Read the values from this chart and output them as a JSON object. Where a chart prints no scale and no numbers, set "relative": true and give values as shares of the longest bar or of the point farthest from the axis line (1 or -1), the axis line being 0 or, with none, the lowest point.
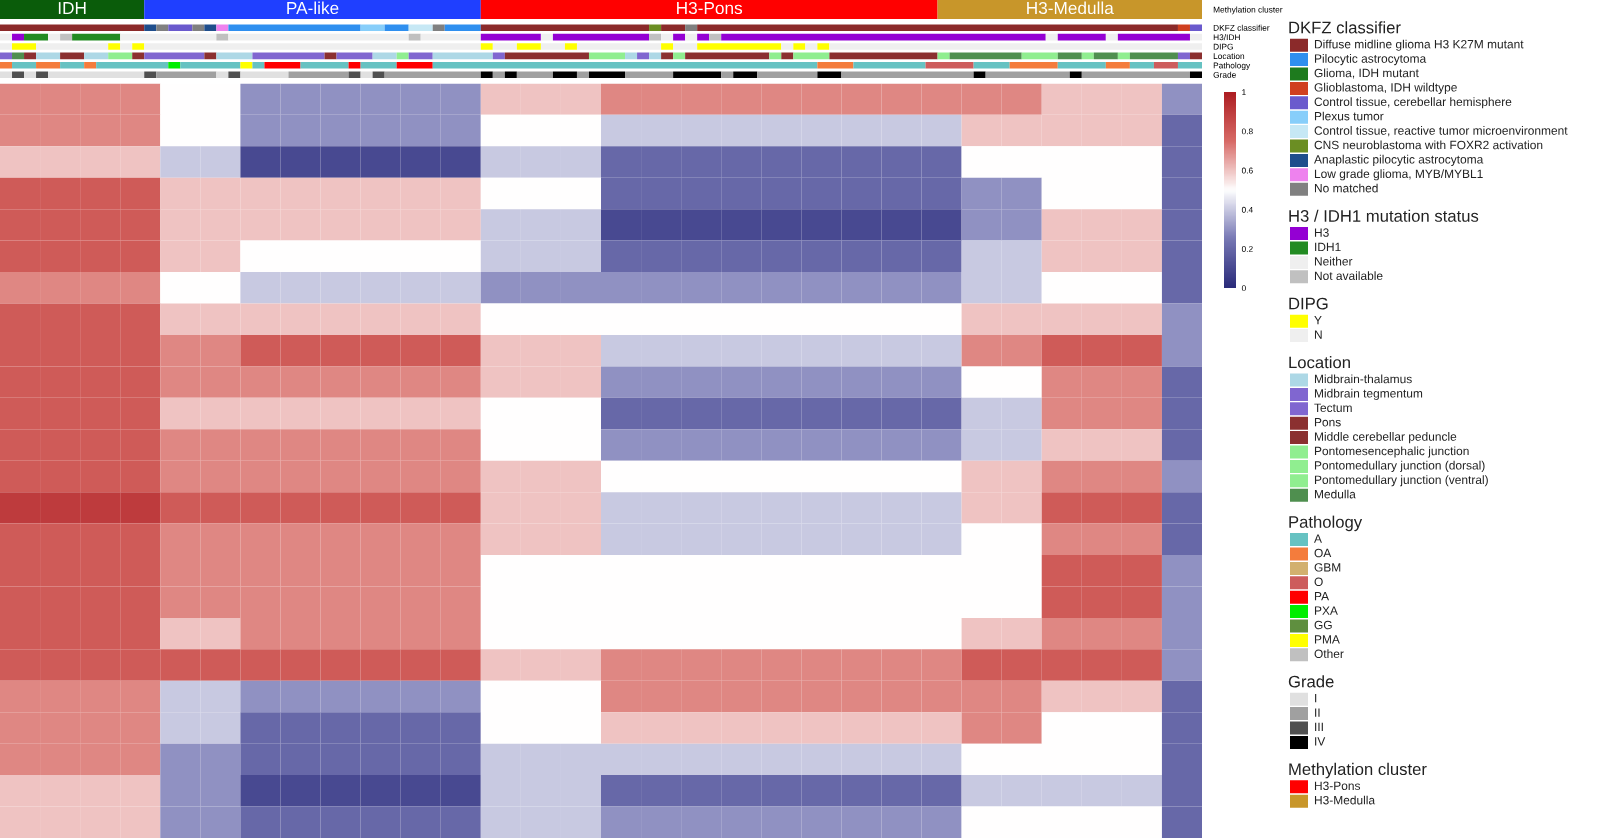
{
  "chart_data": [
    {
      "type": "bar",
      "orientation": "horizontal",
      "stacked": true,
      "relative": true,
      "categories": [
        "Methylation cluster"
      ],
      "series": [
        {
          "color": "#0a5c0a",
          "values": [
            0.12
          ]
        },
        {
          "color": "#1f3fff",
          "values": [
            0.28
          ]
        },
        {
          "color": "#ff0000",
          "values": [
            0.38
          ]
        },
        {
          "color": "#c8962a",
          "values": [
            0.22
          ]
        }
      ],
      "annotations": [
        {
          "text": "IDH",
          "x": 0.06
        },
        {
          "text": "PA-like",
          "x": 0.26
        },
        {
          "text": "H3-Pons",
          "x": 0.59
        },
        {
          "text": "H3-Medulla",
          "x": 0.89
        }
      ]
    },
    {
      "type": "bar",
      "orientation": "horizontal",
      "stacked": true,
      "relative": true,
      "categories": [
        "DKFZ classifier",
        "H3/IDH",
        "DIPG",
        "Location",
        "Pathology",
        "Grade"
      ],
      "series": [
        {
          "values": [
            0.12,
            0.01,
            0.01,
            0.01,
            0.01,
            0.01
          ],
          "colors": [
            "#8b2a2a",
            "#efefef",
            "#efefef",
            "#8066d0",
            "#f47c3c",
            "#e0e0e0"
          ]
        },
        {
          "values": [
            0.01,
            0.01,
            0.02,
            0.01,
            0.02,
            0.01
          ],
          "colors": [
            "#1f4e8c",
            "#9400d3",
            "#ffff00",
            "#4f8f4f",
            "#66c2c2",
            "#505050"
          ]
        },
        {
          "values": [
            0.01,
            0.02,
            0.06,
            0.01,
            0.02,
            0.01
          ],
          "colors": [
            "#808080",
            "#228b22",
            "#efefef",
            "#8b3030",
            "#f47c3c",
            "#e0e0e0"
          ]
        },
        {
          "values": [
            0.02,
            0.01,
            0.01,
            0.02,
            0.02,
            0.01
          ],
          "colors": [
            "#6a5acd",
            "#efefef",
            "#ffff00",
            "#add8e6",
            "#66c2c2",
            "#505050"
          ]
        },
        {
          "values": [
            0.01,
            0.01,
            0.01,
            0.02,
            0.01,
            0.08
          ],
          "colors": [
            "#808080",
            "#c0c0c0",
            "#efefef",
            "#8b3030",
            "#f47c3c",
            "#e0e0e0"
          ]
        },
        {
          "values": [
            0.01,
            0.04,
            0.01,
            0.02,
            0.06,
            0.01
          ],
          "colors": [
            "#1f4e8c",
            "#228b22",
            "#ffff00",
            "#add8e6",
            "#66c2c2",
            "#505050"
          ]
        },
        {
          "values": [
            0.01,
            0.08,
            0.28,
            0.02,
            0.01,
            0.05
          ],
          "colors": [
            "#ee82ee",
            "#efefef",
            "#efefef",
            "#90ee90",
            "#00ee00",
            "#a0a0a0"
          ]
        },
        {
          "values": [
            0.11,
            0.01,
            0.01,
            0.01,
            0.05,
            0.01
          ],
          "colors": [
            "#2f8fef",
            "#c0c0c0",
            "#ffff00",
            "#8b3030",
            "#66c2c2",
            "#e0e0e0"
          ]
        },
        {
          "values": [
            0.02,
            0.15,
            0.02,
            0.05,
            0.01,
            0.01
          ],
          "colors": [
            "#87cefa",
            "#efefef",
            "#efefef",
            "#8066d0",
            "#ffff00",
            "#505050"
          ]
        },
        {
          "values": [
            0.02,
            0.01,
            0.02,
            0.01,
            0.01,
            0.04
          ],
          "colors": [
            "#2f8fef",
            "#c0c0c0",
            "#ffff00",
            "#8b3030",
            "#66c2c2",
            "#e0e0e0"
          ]
        },
        {
          "values": [
            0.02,
            0.05,
            0.02,
            0.03,
            0.03,
            0.05
          ],
          "colors": [
            "#c6e8f5",
            "#efefef",
            "#efefef",
            "#add8e6",
            "#ff0000",
            "#a0a0a0"
          ]
        },
        {
          "values": [
            0.01,
            0.05,
            0.01,
            0.06,
            0.04,
            0.01
          ],
          "colors": [
            "#808080",
            "#9400d3",
            "#ffff00",
            "#8066d0",
            "#66c2c2",
            "#505050"
          ]
        },
        {
          "values": [
            0.03,
            0.01,
            0.07,
            0.01,
            0.01,
            0.01
          ],
          "colors": [
            "#2f8fef",
            "#efefef",
            "#efefef",
            "#8b3030",
            "#ff0000",
            "#e0e0e0"
          ]
        },
        {
          "values": [
            0.14,
            0.08,
            0.01,
            0.03,
            0.03,
            0.01
          ],
          "colors": [
            "#8b2a2a",
            "#9400d3",
            "#ffff00",
            "#8066d0",
            "#66c2c2",
            "#505050"
          ]
        },
        {
          "values": [
            0.01,
            0.01,
            0.02,
            0.02,
            0.03,
            0.08
          ],
          "colors": [
            "#6b8e23",
            "#c0c0c0",
            "#efefef",
            "#add8e6",
            "#ff0000",
            "#a0a0a0"
          ]
        },
        {
          "values": [
            0.02,
            0.01,
            0.07,
            0.01,
            0.32,
            0.01
          ],
          "colors": [
            "#8b2a2a",
            "#efefef",
            "#ffff00",
            "#90ee90",
            "#66c2c2",
            "#000000"
          ]
        },
        {
          "values": [
            0.01,
            0.01,
            0.01,
            0.02,
            0.03,
            0.01
          ],
          "colors": [
            "#808080",
            "#9400d3",
            "#efefef",
            "#8066d0",
            "#f47c3c",
            "#a0a0a0"
          ]
        },
        {
          "values": [
            0.4,
            0.01,
            0.01,
            0.05,
            0.06,
            0.01
          ],
          "colors": [
            "#8b2a2a",
            "#efefef",
            "#ffff00",
            "#add8e6",
            "#66c2c2",
            "#000000"
          ]
        },
        {
          "values": [
            0.01,
            0.01,
            0.01,
            0.01,
            0.04,
            0.03
          ],
          "colors": [
            "#d04020",
            "#9400d3",
            "#efefef",
            "#8066d0",
            "#cd5c5c",
            "#a0a0a0"
          ]
        },
        {
          "values": [
            0.01,
            0.01,
            0.01,
            0.07,
            0.03,
            0.02
          ],
          "colors": [
            "#6a5acd",
            "#c0c0c0",
            "#ffff00",
            "#8b3030",
            "#66c2c2",
            "#000000"
          ]
        },
        {
          "values": [
            null,
            0.27,
            0.31,
            0.03,
            0.04,
            0.01
          ],
          "colors": [
            null,
            "#9400d3",
            "#efefef",
            "#90ee90",
            "#f47c3c",
            "#a0a0a0"
          ]
        },
        {
          "values": [
            null,
            0.01,
            null,
            0.01,
            0.04,
            0.03
          ],
          "colors": [
            null,
            "#efefef",
            null,
            "#add8e6",
            "#66c2c2",
            "#000000"
          ]
        },
        {
          "values": [
            null,
            0.04,
            null,
            0.01,
            0.02,
            0.04
          ],
          "colors": [
            null,
            "#9400d3",
            null,
            "#8066d0",
            "#f47c3c",
            "#a0a0a0"
          ]
        },
        {
          "values": [
            null,
            0.01,
            null,
            0.01,
            0.02,
            0.04
          ],
          "colors": [
            null,
            "#efefef",
            null,
            "#add8e6",
            "#66c2c2",
            "#000000"
          ]
        },
        {
          "values": [
            null,
            0.06,
            null,
            0.01,
            0.02,
            0.01
          ],
          "colors": [
            null,
            "#9400d3",
            null,
            "#8b3030",
            "#cd5c5c",
            "#a0a0a0"
          ]
        },
        {
          "values": [
            null,
            0.01,
            null,
            0.01,
            0.02,
            0.02
          ],
          "colors": [
            null,
            "#efefef",
            null,
            "#90ee90",
            "#66c2c2",
            "#000000"
          ]
        },
        {
          "values": [
            null,
            null,
            null,
            0.07,
            null,
            0.05
          ],
          "colors": [
            null,
            null,
            null,
            "#8b3030",
            null,
            "#a0a0a0"
          ]
        },
        {
          "values": [
            null,
            null,
            null,
            0.01,
            null,
            0.02
          ],
          "colors": [
            null,
            null,
            null,
            "#90ee90",
            null,
            "#000000"
          ]
        },
        {
          "values": [
            null,
            null,
            null,
            0.01,
            null,
            0.11
          ],
          "colors": [
            null,
            null,
            null,
            "#8b3030",
            null,
            "#a0a0a0"
          ]
        },
        {
          "values": [
            null,
            null,
            null,
            0.03,
            null,
            0.01
          ],
          "colors": [
            null,
            null,
            null,
            "#90ee90",
            null,
            "#000000"
          ]
        },
        {
          "values": [
            null,
            null,
            null,
            0.09,
            null,
            0.07
          ],
          "colors": [
            null,
            null,
            null,
            "#8b3030",
            null,
            "#a0a0a0"
          ]
        },
        {
          "values": [
            null,
            null,
            null,
            0.01,
            null,
            0.01
          ],
          "colors": [
            null,
            null,
            null,
            "#90ee90",
            null,
            "#000000"
          ]
        },
        {
          "values": [
            null,
            null,
            null,
            0.06,
            null,
            0.09
          ],
          "colors": [
            null,
            null,
            null,
            "#4f8f4f",
            null,
            "#a0a0a0"
          ]
        },
        {
          "values": [
            null,
            null,
            null,
            0.03,
            null,
            0.01
          ],
          "colors": [
            null,
            null,
            null,
            "#90ee90",
            null,
            "#000000"
          ]
        },
        {
          "values": [
            null,
            null,
            null,
            0.02,
            null,
            null
          ],
          "colors": [
            null,
            null,
            null,
            "#4f8f4f",
            null,
            null
          ]
        },
        {
          "values": [
            null,
            null,
            null,
            0.01,
            null,
            null
          ],
          "colors": [
            null,
            null,
            null,
            "#90ee90",
            null,
            null
          ]
        },
        {
          "values": [
            null,
            null,
            null,
            0.02,
            null,
            null
          ],
          "colors": [
            null,
            null,
            null,
            "#4f8f4f",
            null,
            null
          ]
        },
        {
          "values": [
            null,
            null,
            null,
            0.01,
            null,
            null
          ],
          "colors": [
            null,
            null,
            null,
            "#90ee90",
            null,
            null
          ]
        },
        {
          "values": [
            null,
            null,
            null,
            0.04,
            null,
            null
          ],
          "colors": [
            null,
            null,
            null,
            "#4f8f4f",
            null,
            null
          ]
        },
        {
          "values": [
            null,
            null,
            null,
            0.01,
            null,
            null
          ],
          "colors": [
            null,
            null,
            null,
            "#8066d0",
            null,
            null
          ]
        },
        {
          "values": [
            null,
            null,
            null,
            0.01,
            null,
            null
          ],
          "colors": [
            null,
            null,
            null,
            "#8b3030",
            null,
            null
          ]
        }
      ]
    },
    {
      "type": "heatmap",
      "clim": [
        0,
        1
      ],
      "cticks": [
        0,
        0.2,
        0.4,
        0.6,
        0.8,
        1
      ],
      "categories": [
        null,
        null,
        null,
        null,
        null,
        null,
        null,
        null,
        null,
        null,
        null,
        null,
        null,
        null,
        null,
        null,
        null,
        null,
        null,
        null,
        null,
        null,
        null,
        null,
        null,
        null,
        null,
        null,
        null,
        null
      ],
      "y_categories": [
        null,
        null,
        null,
        null,
        null,
        null,
        null,
        null,
        null,
        null,
        null,
        null,
        null,
        null,
        null,
        null,
        null,
        null,
        null,
        null,
        null,
        null,
        null,
        null
      ],
      "cells": [
        [
          0.7,
          0.7,
          0.7,
          0.7,
          0.5,
          0.5,
          0.3,
          0.3,
          0.3,
          0.3,
          0.3,
          0.3,
          0.6,
          0.6,
          0.6,
          0.7,
          0.7,
          0.7,
          0.7,
          0.7,
          0.7,
          0.7,
          0.7,
          0.7,
          0.7,
          0.7,
          0.6,
          0.6,
          0.6,
          0.3
        ],
        [
          0.7,
          0.7,
          0.7,
          0.7,
          0.5,
          0.5,
          0.3,
          0.3,
          0.3,
          0.3,
          0.3,
          0.3,
          0.5,
          0.5,
          0.5,
          0.4,
          0.4,
          0.4,
          0.4,
          0.4,
          0.4,
          0.4,
          0.4,
          0.4,
          0.6,
          0.6,
          0.6,
          0.6,
          0.6,
          0.2
        ],
        [
          0.6,
          0.6,
          0.6,
          0.6,
          0.4,
          0.4,
          0.1,
          0.1,
          0.1,
          0.1,
          0.1,
          0.1,
          0.4,
          0.4,
          0.4,
          0.2,
          0.2,
          0.2,
          0.2,
          0.2,
          0.2,
          0.2,
          0.2,
          0.2,
          0.5,
          0.5,
          0.5,
          0.5,
          0.5,
          0.2
        ],
        [
          0.8,
          0.8,
          0.8,
          0.8,
          0.6,
          0.6,
          0.6,
          0.6,
          0.6,
          0.6,
          0.6,
          0.6,
          0.5,
          0.5,
          0.5,
          0.2,
          0.2,
          0.2,
          0.2,
          0.2,
          0.2,
          0.2,
          0.2,
          0.2,
          0.3,
          0.3,
          0.5,
          0.5,
          0.5,
          0.2
        ],
        [
          0.8,
          0.8,
          0.8,
          0.8,
          0.6,
          0.6,
          0.6,
          0.6,
          0.6,
          0.6,
          0.6,
          0.6,
          0.4,
          0.4,
          0.4,
          0.1,
          0.1,
          0.1,
          0.1,
          0.1,
          0.1,
          0.1,
          0.1,
          0.1,
          0.3,
          0.3,
          0.6,
          0.6,
          0.6,
          0.2
        ],
        [
          0.8,
          0.8,
          0.8,
          0.8,
          0.6,
          0.6,
          0.5,
          0.5,
          0.5,
          0.5,
          0.5,
          0.5,
          0.4,
          0.4,
          0.4,
          0.2,
          0.2,
          0.2,
          0.2,
          0.2,
          0.2,
          0.2,
          0.2,
          0.2,
          0.4,
          0.4,
          0.6,
          0.6,
          0.6,
          0.2
        ],
        [
          0.7,
          0.7,
          0.7,
          0.7,
          0.5,
          0.5,
          0.4,
          0.4,
          0.4,
          0.4,
          0.4,
          0.4,
          0.3,
          0.3,
          0.3,
          0.3,
          0.3,
          0.3,
          0.3,
          0.3,
          0.3,
          0.3,
          0.3,
          0.3,
          0.4,
          0.4,
          0.5,
          0.5,
          0.5,
          0.2
        ],
        [
          0.8,
          0.8,
          0.8,
          0.8,
          0.6,
          0.6,
          0.6,
          0.6,
          0.6,
          0.6,
          0.6,
          0.6,
          0.5,
          0.5,
          0.5,
          0.5,
          0.5,
          0.5,
          0.5,
          0.5,
          0.5,
          0.5,
          0.5,
          0.5,
          0.6,
          0.6,
          0.6,
          0.6,
          0.6,
          0.3
        ],
        [
          0.8,
          0.8,
          0.8,
          0.8,
          0.7,
          0.7,
          0.8,
          0.8,
          0.8,
          0.8,
          0.8,
          0.8,
          0.6,
          0.6,
          0.6,
          0.4,
          0.4,
          0.4,
          0.4,
          0.4,
          0.4,
          0.4,
          0.4,
          0.4,
          0.7,
          0.7,
          0.8,
          0.8,
          0.8,
          0.3
        ],
        [
          0.8,
          0.8,
          0.8,
          0.8,
          0.7,
          0.7,
          0.7,
          0.7,
          0.7,
          0.7,
          0.7,
          0.7,
          0.6,
          0.6,
          0.6,
          0.3,
          0.3,
          0.3,
          0.3,
          0.3,
          0.3,
          0.3,
          0.3,
          0.3,
          0.5,
          0.5,
          0.7,
          0.7,
          0.7,
          0.2
        ],
        [
          0.8,
          0.8,
          0.8,
          0.8,
          0.6,
          0.6,
          0.6,
          0.6,
          0.6,
          0.6,
          0.6,
          0.6,
          0.5,
          0.5,
          0.5,
          0.2,
          0.2,
          0.2,
          0.2,
          0.2,
          0.2,
          0.2,
          0.2,
          0.2,
          0.4,
          0.4,
          0.7,
          0.7,
          0.7,
          0.2
        ],
        [
          0.8,
          0.8,
          0.8,
          0.8,
          0.7,
          0.7,
          0.7,
          0.7,
          0.7,
          0.7,
          0.7,
          0.7,
          0.5,
          0.5,
          0.5,
          0.3,
          0.3,
          0.3,
          0.3,
          0.3,
          0.3,
          0.3,
          0.3,
          0.3,
          0.4,
          0.4,
          0.6,
          0.6,
          0.6,
          0.2
        ],
        [
          0.8,
          0.8,
          0.8,
          0.8,
          0.7,
          0.7,
          0.7,
          0.7,
          0.7,
          0.7,
          0.7,
          0.7,
          0.6,
          0.6,
          0.6,
          0.5,
          0.5,
          0.5,
          0.5,
          0.5,
          0.5,
          0.5,
          0.5,
          0.5,
          0.6,
          0.6,
          0.7,
          0.7,
          0.7,
          0.3
        ],
        [
          0.9,
          0.9,
          0.9,
          0.9,
          0.8,
          0.8,
          0.8,
          0.8,
          0.8,
          0.8,
          0.8,
          0.8,
          0.6,
          0.6,
          0.6,
          0.4,
          0.4,
          0.4,
          0.4,
          0.4,
          0.4,
          0.4,
          0.4,
          0.4,
          0.6,
          0.6,
          0.8,
          0.8,
          0.8,
          0.2
        ],
        [
          0.8,
          0.8,
          0.8,
          0.8,
          0.7,
          0.7,
          0.7,
          0.7,
          0.7,
          0.7,
          0.7,
          0.7,
          0.6,
          0.6,
          0.6,
          0.4,
          0.4,
          0.4,
          0.4,
          0.4,
          0.4,
          0.4,
          0.4,
          0.4,
          0.5,
          0.5,
          0.7,
          0.7,
          0.7,
          0.2
        ],
        [
          0.8,
          0.8,
          0.8,
          0.8,
          0.7,
          0.7,
          0.7,
          0.7,
          0.7,
          0.7,
          0.7,
          0.7,
          0.5,
          0.5,
          0.5,
          0.5,
          0.5,
          0.5,
          0.5,
          0.5,
          0.5,
          0.5,
          0.5,
          0.5,
          0.5,
          0.5,
          0.8,
          0.8,
          0.8,
          0.3
        ],
        [
          0.8,
          0.8,
          0.8,
          0.8,
          0.7,
          0.7,
          0.7,
          0.7,
          0.7,
          0.7,
          0.7,
          0.7,
          0.5,
          0.5,
          0.5,
          0.5,
          0.5,
          0.5,
          0.5,
          0.5,
          0.5,
          0.5,
          0.5,
          0.5,
          0.5,
          0.5,
          0.8,
          0.8,
          0.8,
          0.3
        ],
        [
          0.8,
          0.8,
          0.8,
          0.8,
          0.6,
          0.6,
          0.7,
          0.7,
          0.7,
          0.7,
          0.7,
          0.7,
          0.5,
          0.5,
          0.5,
          0.5,
          0.5,
          0.5,
          0.5,
          0.5,
          0.5,
          0.5,
          0.5,
          0.5,
          0.6,
          0.6,
          0.7,
          0.7,
          0.7,
          0.3
        ],
        [
          0.8,
          0.8,
          0.8,
          0.8,
          0.8,
          0.8,
          0.8,
          0.8,
          0.8,
          0.8,
          0.8,
          0.8,
          0.6,
          0.6,
          0.6,
          0.7,
          0.7,
          0.7,
          0.7,
          0.7,
          0.7,
          0.7,
          0.7,
          0.7,
          0.8,
          0.8,
          0.8,
          0.8,
          0.8,
          0.3
        ],
        [
          0.7,
          0.7,
          0.7,
          0.7,
          0.4,
          0.4,
          0.3,
          0.3,
          0.3,
          0.3,
          0.3,
          0.3,
          0.5,
          0.5,
          0.5,
          0.7,
          0.7,
          0.7,
          0.7,
          0.7,
          0.7,
          0.7,
          0.7,
          0.7,
          0.7,
          0.7,
          0.6,
          0.6,
          0.6,
          0.2
        ],
        [
          0.7,
          0.7,
          0.7,
          0.7,
          0.4,
          0.4,
          0.2,
          0.2,
          0.2,
          0.2,
          0.2,
          0.2,
          0.5,
          0.5,
          0.5,
          0.6,
          0.6,
          0.6,
          0.6,
          0.6,
          0.6,
          0.6,
          0.6,
          0.6,
          0.7,
          0.7,
          0.5,
          0.5,
          0.5,
          0.2
        ],
        [
          0.7,
          0.7,
          0.7,
          0.7,
          0.3,
          0.3,
          0.2,
          0.2,
          0.2,
          0.2,
          0.2,
          0.2,
          0.4,
          0.4,
          0.4,
          0.4,
          0.4,
          0.4,
          0.4,
          0.4,
          0.4,
          0.4,
          0.4,
          0.4,
          0.5,
          0.5,
          0.5,
          0.5,
          0.5,
          0.2
        ],
        [
          0.6,
          0.6,
          0.6,
          0.6,
          0.3,
          0.3,
          0.1,
          0.1,
          0.1,
          0.1,
          0.1,
          0.1,
          0.4,
          0.4,
          0.4,
          0.2,
          0.2,
          0.2,
          0.2,
          0.2,
          0.2,
          0.2,
          0.2,
          0.2,
          0.4,
          0.4,
          0.4,
          0.4,
          0.4,
          0.2
        ],
        [
          0.6,
          0.6,
          0.6,
          0.6,
          0.3,
          0.3,
          0.2,
          0.2,
          0.2,
          0.2,
          0.2,
          0.2,
          0.4,
          0.4,
          0.4,
          0.3,
          0.3,
          0.3,
          0.3,
          0.3,
          0.3,
          0.3,
          0.3,
          0.3,
          0.5,
          0.5,
          0.5,
          0.5,
          0.5,
          0.2
        ]
      ]
    },
    {
      "type": "other",
      "title": "DKFZ classifier",
      "series": [
        {
          "name": "Diffuse midline glioma H3 K27M mutant",
          "color": "#8b2a2a"
        },
        {
          "name": "Pilocytic astrocytoma",
          "color": "#2f8fef"
        },
        {
          "name": "Glioma, IDH mutant",
          "color": "#1e7b1e"
        },
        {
          "name": "Glioblastoma, IDH wildtype",
          "color": "#d04020"
        },
        {
          "name": "Control tissue, cerebellar hemisphere",
          "color": "#6a5acd"
        },
        {
          "name": "Plexus tumor",
          "color": "#87cefa"
        },
        {
          "name": "Control tissue, reactive tumor microenvironment",
          "color": "#c6e8f5"
        },
        {
          "name": "CNS neuroblastoma with FOXR2 activation",
          "color": "#6b8e23"
        },
        {
          "name": "Anaplastic pilocytic astrocytoma",
          "color": "#1f4e8c"
        },
        {
          "name": "Low grade glioma, MYB/MYBL1",
          "color": "#ee82ee"
        },
        {
          "name": "No matched",
          "color": "#808080"
        }
      ]
    },
    {
      "type": "other",
      "title": "H3 / IDH1 mutation status",
      "series": [
        {
          "name": "H3",
          "color": "#9400d3"
        },
        {
          "name": "IDH1",
          "color": "#228b22"
        },
        {
          "name": "Neither",
          "color": "#efefef"
        },
        {
          "name": "Not available",
          "color": "#c0c0c0"
        }
      ]
    },
    {
      "type": "other",
      "title": "DIPG",
      "series": [
        {
          "name": "Y",
          "color": "#ffff00"
        },
        {
          "name": "N",
          "color": "#efefef"
        }
      ]
    },
    {
      "type": "other",
      "title": "Location",
      "series": [
        {
          "name": "Midbrain-thalamus",
          "color": "#add8e6"
        },
        {
          "name": "Midbrain tegmentum",
          "color": "#8066d0"
        },
        {
          "name": "Tectum",
          "color": "#8066d0"
        },
        {
          "name": "Pons",
          "color": "#8b3030"
        },
        {
          "name": "Middle cerebellar peduncle",
          "color": "#8b3030"
        },
        {
          "name": "Pontomesencephalic junction",
          "color": "#90ee90"
        },
        {
          "name": "Pontomedullary junction (dorsal)",
          "color": "#90ee90"
        },
        {
          "name": "Pontomedullary junction (ventral)",
          "color": "#90ee90"
        },
        {
          "name": "Medulla",
          "color": "#4f8f4f"
        }
      ]
    },
    {
      "type": "other",
      "title": "Pathology",
      "series": [
        {
          "name": "A",
          "color": "#66c2c2"
        },
        {
          "name": "OA",
          "color": "#f47c3c"
        },
        {
          "name": "GBM",
          "color": "#d2b06e"
        },
        {
          "name": "O",
          "color": "#cd5c5c"
        },
        {
          "name": "PA",
          "color": "#ff0000"
        },
        {
          "name": "PXA",
          "color": "#00ee00"
        },
        {
          "name": "GG",
          "color": "#5f8f3f"
        },
        {
          "name": "PMA",
          "color": "#ffff00"
        },
        {
          "name": "Other",
          "color": "#c0c0c0"
        }
      ]
    },
    {
      "type": "other",
      "title": "Grade",
      "series": [
        {
          "name": "I",
          "color": "#e0e0e0"
        },
        {
          "name": "II",
          "color": "#a0a0a0"
        },
        {
          "name": "III",
          "color": "#505050"
        },
        {
          "name": "IV",
          "color": "#000000"
        }
      ]
    },
    {
      "type": "other",
      "title": "Methylation cluster",
      "series": [
        {
          "name": "H3-Pons",
          "color": "#ff0000"
        },
        {
          "name": "H3-Medulla",
          "color": "#c8962a"
        }
      ]
    }
  ]
}
